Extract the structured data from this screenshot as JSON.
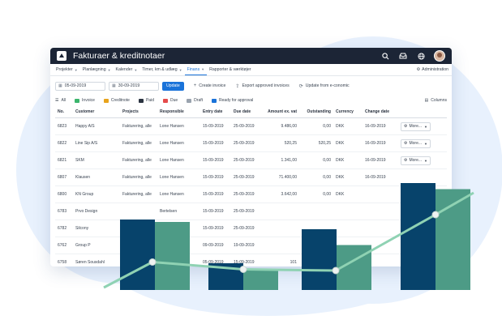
{
  "window": {
    "title": "Fakturaer & kreditnotaer",
    "icons": [
      "search-icon",
      "inbox-icon",
      "globe-icon",
      "avatar"
    ]
  },
  "menu": {
    "items": [
      {
        "label": "Projekter",
        "has_caret": true,
        "active": false
      },
      {
        "label": "Planlægning",
        "has_caret": true,
        "active": false
      },
      {
        "label": "Kalender",
        "has_caret": true,
        "active": false
      },
      {
        "label": "Timer, km & udlæg",
        "has_caret": true,
        "active": false
      },
      {
        "label": "Finans",
        "has_caret": true,
        "active": true
      },
      {
        "label": "Rapporter & værktøjer",
        "has_caret": false,
        "active": false
      }
    ],
    "admin_label": "Administration"
  },
  "toolbar": {
    "date_from": "05-09-2019",
    "date_to": "30-09-2019",
    "update_label": "Update",
    "create_invoice": "Create invoice",
    "export_label": "Export approved invoices",
    "economic_label": "Update from e-conomic"
  },
  "filters": [
    {
      "label": "All",
      "color": ""
    },
    {
      "label": "Invoice",
      "color": "#3bb56c"
    },
    {
      "label": "Creditnote",
      "color": "#e8a31c"
    },
    {
      "label": "Paid",
      "color": "#2b3340"
    },
    {
      "label": "Due",
      "color": "#e54b4b"
    },
    {
      "label": "Draft",
      "color": "#9aa3ae"
    },
    {
      "label": "Ready for approval",
      "color": "#1a73d9"
    }
  ],
  "columns_label": "Columns",
  "table": {
    "headers": [
      "No.",
      "Customer",
      "Projects",
      "Responsible",
      "Entry date",
      "Due date",
      "Amount ex. vat",
      "Outstanding",
      "Currency",
      "Change date",
      ""
    ],
    "rows": [
      [
        "6823",
        "Happy A/S",
        "Fakturering, alle",
        "Lone Hansen",
        "15-09-2019",
        "25-09-2019",
        "9.486,00",
        "0,00",
        "DKK",
        "16-09-2019",
        "More..."
      ],
      [
        "6822",
        "Line Sip A/S",
        "Fakturering, alle",
        "Lone Hansen",
        "15-09-2019",
        "25-09-2019",
        "520,25",
        "520,25",
        "DKK",
        "16-09-2019",
        "More..."
      ],
      [
        "6821",
        "SKM",
        "Fakturering, alle",
        "Lone Hansen",
        "15-09-2019",
        "25-09-2019",
        "1.341,00",
        "0,00",
        "DKK",
        "16-09-2019",
        "More..."
      ],
      [
        "6807",
        "Klausen",
        "Fakturering, alle",
        "Lone Hansen",
        "15-09-2019",
        "25-09-2019",
        "71.400,00",
        "0,00",
        "DKK",
        "16-09-2019",
        ""
      ],
      [
        "6800",
        "KN Group",
        "Fakturering, alle",
        "Lone Hansen",
        "15-09-2019",
        "25-09-2019",
        "3.642,00",
        "0,00",
        "DKK",
        "",
        ""
      ],
      [
        "6783",
        "Prvo Design",
        "",
        "Bertelsen",
        "15-09-2019",
        "25-09-2019",
        "",
        "",
        "",
        "",
        ""
      ],
      [
        "6782",
        "Silcony",
        "",
        "",
        "15-09-2019",
        "25-09-2019",
        "",
        "",
        "",
        "",
        ""
      ],
      [
        "6762",
        "Group P",
        "",
        "",
        "09-09-2019",
        "19-09-2019",
        "",
        "",
        "",
        "",
        ""
      ],
      [
        "6758",
        "Søren Sousdahl",
        "",
        "ed",
        "05-09-2019",
        "15-09-2019",
        "101",
        "",
        "",
        "",
        ""
      ]
    ]
  },
  "overlay": {
    "colors": {
      "dark": "#07436b",
      "teal": "#4d9b86",
      "line": "#8fd2b3",
      "point": "#eef2f1"
    },
    "bars": [
      {
        "dark": 0.58,
        "teal": 0.56
      },
      {
        "dark": 0.22,
        "teal": 0.16
      },
      {
        "dark": 0.5,
        "teal": 0.37
      },
      {
        "dark": 0.88,
        "teal": 0.83
      }
    ],
    "line": [
      0.02,
      0.23,
      0.17,
      0.16,
      0.62,
      0.8
    ]
  }
}
